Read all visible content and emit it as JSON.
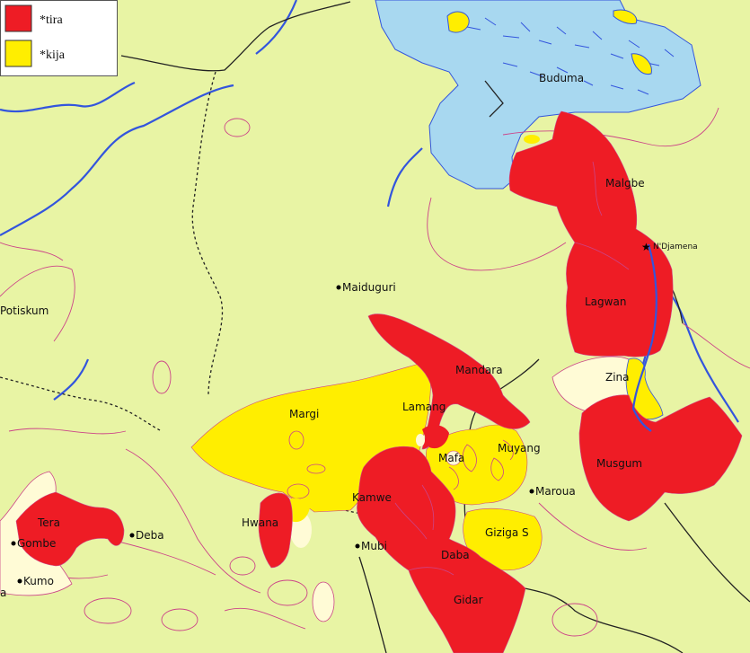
{
  "legend": [
    {
      "label": "*tira",
      "color": "#ee1c25"
    },
    {
      "label": "*kija",
      "color": "#ffee00"
    }
  ],
  "colors": {
    "land": "#e8f4a4",
    "water": "#a8d8f0",
    "river": "#3355dd",
    "border": "#222222",
    "region_line": "#cc4488",
    "pale_area": "#fffbd6"
  },
  "language_labels": [
    {
      "name": "Buduma",
      "category": "water"
    },
    {
      "name": "Malgbe",
      "category": "tira"
    },
    {
      "name": "Lagwan",
      "category": "tira"
    },
    {
      "name": "Mandara",
      "category": "tira"
    },
    {
      "name": "Zina",
      "category": "kija"
    },
    {
      "name": "Lamang",
      "category": "tira"
    },
    {
      "name": "Margi",
      "category": "kija"
    },
    {
      "name": "Mafa",
      "category": "tira"
    },
    {
      "name": "Muyang",
      "category": "kija"
    },
    {
      "name": "Musgum",
      "category": "tira"
    },
    {
      "name": "Kamwe",
      "category": "tira"
    },
    {
      "name": "Hwana",
      "category": "tira"
    },
    {
      "name": "Tera",
      "category": "tira"
    },
    {
      "name": "Giziga S",
      "category": "kija"
    },
    {
      "name": "Daba",
      "category": "tira"
    },
    {
      "name": "Gidar",
      "category": "tira"
    }
  ],
  "cities": [
    {
      "name": "N'Djamena",
      "marker": "star"
    },
    {
      "name": "Maiduguri",
      "marker": "dot"
    },
    {
      "name": "Potiskum",
      "marker": "none"
    },
    {
      "name": "Maroua",
      "marker": "dot"
    },
    {
      "name": "Deba",
      "marker": "dot"
    },
    {
      "name": "Gombe",
      "marker": "dot"
    },
    {
      "name": "Mubi",
      "marker": "dot"
    },
    {
      "name": "Kumo",
      "marker": "dot"
    }
  ],
  "edge_fragment": "a"
}
